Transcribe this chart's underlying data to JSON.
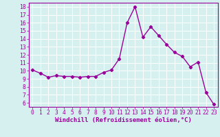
{
  "x": [
    0,
    1,
    2,
    3,
    4,
    5,
    6,
    7,
    8,
    9,
    10,
    11,
    12,
    13,
    14,
    15,
    16,
    17,
    18,
    19,
    20,
    21,
    22,
    23
  ],
  "y": [
    10.1,
    9.7,
    9.2,
    9.4,
    9.3,
    9.3,
    9.2,
    9.3,
    9.3,
    9.8,
    10.1,
    11.5,
    16.0,
    18.0,
    14.2,
    15.5,
    14.4,
    13.3,
    12.3,
    11.8,
    10.5,
    11.1,
    7.3,
    5.8
  ],
  "line_color": "#990099",
  "marker": "D",
  "marker_size": 2.2,
  "linewidth": 1.0,
  "bg_color": "#d6f0f0",
  "grid_color": "#ffffff",
  "xlabel": "Windchill (Refroidissement éolien,°C)",
  "xlabel_color": "#990099",
  "xlabel_fontsize": 6.5,
  "tick_color": "#990099",
  "tick_fontsize": 5.8,
  "ylim": [
    5.5,
    18.5
  ],
  "xlim": [
    -0.5,
    23.5
  ],
  "yticks": [
    6,
    7,
    8,
    9,
    10,
    11,
    12,
    13,
    14,
    15,
    16,
    17,
    18
  ],
  "xticks": [
    0,
    1,
    2,
    3,
    4,
    5,
    6,
    7,
    8,
    9,
    10,
    11,
    12,
    13,
    14,
    15,
    16,
    17,
    18,
    19,
    20,
    21,
    22,
    23
  ],
  "spine_color": "#990099"
}
